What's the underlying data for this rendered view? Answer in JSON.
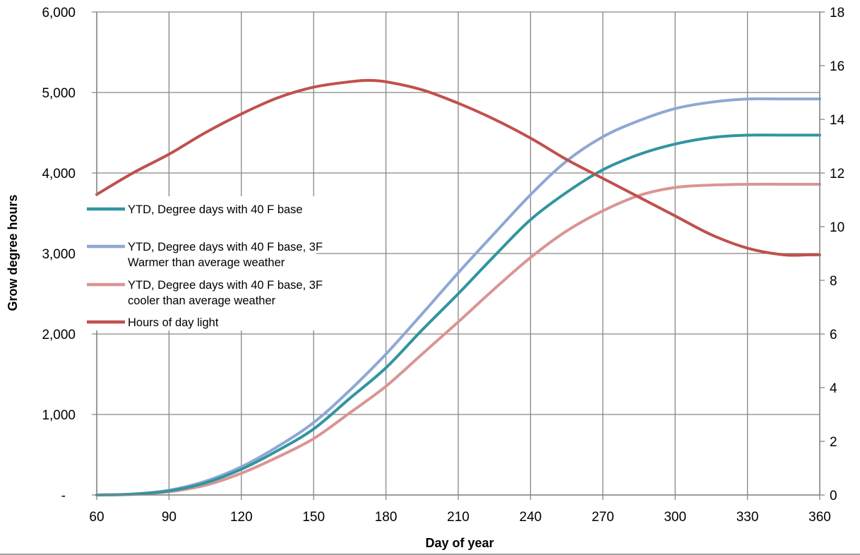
{
  "chart_data": {
    "type": "line",
    "title": "",
    "xlabel": "Day of year",
    "ylabel": "Grow degree hours",
    "y2label": "",
    "xlim": [
      60,
      360
    ],
    "ylim": [
      0,
      6000
    ],
    "y2lim": [
      0,
      18
    ],
    "grid": true,
    "x_ticks": [
      "60",
      "90",
      "120",
      "150",
      "180",
      "210",
      "240",
      "270",
      "300",
      "330",
      "360"
    ],
    "y_ticks": [
      "-",
      "1,000",
      "2,000",
      "3,000",
      "4,000",
      "5,000",
      "6,000"
    ],
    "y2_ticks": [
      "0",
      "2",
      "4",
      "6",
      "8",
      "10",
      "12",
      "14",
      "16",
      "18"
    ],
    "legend_position": "left-middle",
    "series": [
      {
        "name": [
          "YTD, Degree days with 40 F base"
        ],
        "axis": "left",
        "color": "#31959F",
        "x": [
          60,
          75,
          90,
          105,
          120,
          135,
          150,
          165,
          180,
          195,
          210,
          225,
          240,
          255,
          270,
          285,
          300,
          315,
          330,
          345,
          360
        ],
        "y": [
          0,
          10,
          50,
          150,
          320,
          550,
          820,
          1200,
          1580,
          2050,
          2500,
          2970,
          3420,
          3760,
          4040,
          4230,
          4360,
          4440,
          4470,
          4470,
          4470
        ]
      },
      {
        "name": [
          "YTD, Degree days with 40 F base, 3F",
          "Warmer than average weather"
        ],
        "axis": "left",
        "color": "#8EA8D4",
        "x": [
          60,
          75,
          90,
          105,
          120,
          135,
          150,
          165,
          180,
          195,
          210,
          225,
          240,
          255,
          270,
          285,
          300,
          315,
          330,
          345,
          360
        ],
        "y": [
          0,
          12,
          60,
          170,
          350,
          600,
          900,
          1300,
          1750,
          2250,
          2760,
          3250,
          3730,
          4150,
          4450,
          4650,
          4800,
          4880,
          4920,
          4920,
          4920
        ]
      },
      {
        "name": [
          "YTD, Degree days with 40 F base, 3F",
          "cooler than average weather"
        ],
        "axis": "left",
        "color": "#D99594",
        "x": [
          60,
          75,
          90,
          105,
          120,
          135,
          150,
          165,
          180,
          195,
          210,
          225,
          240,
          255,
          270,
          285,
          300,
          315,
          330,
          345,
          360
        ],
        "y": [
          0,
          8,
          40,
          120,
          270,
          470,
          700,
          1020,
          1350,
          1750,
          2150,
          2560,
          2950,
          3280,
          3530,
          3720,
          3820,
          3850,
          3860,
          3860,
          3860
        ]
      },
      {
        "name": [
          "Hours of day light"
        ],
        "axis": "right",
        "color": "#C0504D",
        "x": [
          60,
          75,
          90,
          105,
          120,
          135,
          150,
          165,
          172,
          180,
          195,
          210,
          225,
          240,
          255,
          270,
          285,
          300,
          315,
          330,
          345,
          355,
          360
        ],
        "y": [
          11.2,
          12.0,
          12.7,
          13.5,
          14.2,
          14.8,
          15.2,
          15.4,
          15.45,
          15.4,
          15.1,
          14.6,
          14.0,
          13.3,
          12.5,
          11.8,
          11.1,
          10.4,
          9.7,
          9.2,
          8.95,
          8.95,
          8.95
        ]
      }
    ]
  }
}
